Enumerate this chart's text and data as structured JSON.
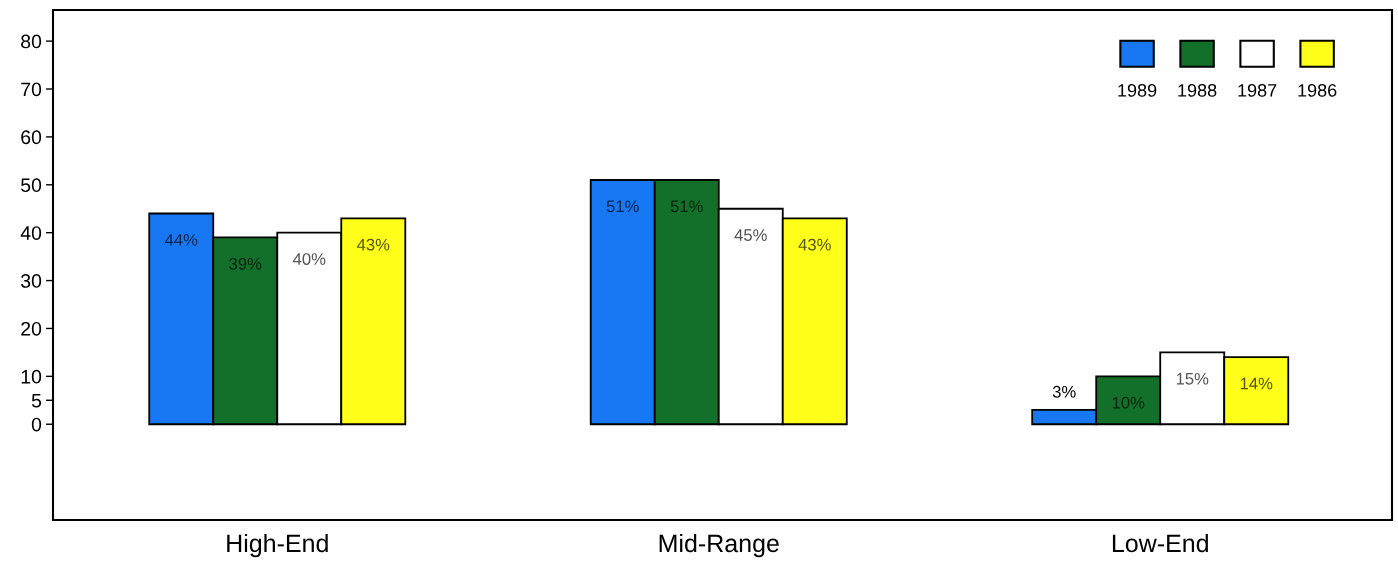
{
  "chart_data": {
    "type": "bar",
    "categories": [
      "High-End",
      "Mid-Range",
      "Low-End"
    ],
    "series": [
      {
        "name": "1989",
        "color": "#1877f2",
        "values": [
          44,
          51,
          3
        ],
        "value_labels": [
          "44%",
          "51%",
          "3%"
        ]
      },
      {
        "name": "1988",
        "color": "#13702a",
        "values": [
          39,
          51,
          10
        ],
        "value_labels": [
          "39%",
          "51%",
          "10%"
        ]
      },
      {
        "name": "1987",
        "color": "#ffffff",
        "values": [
          40,
          45,
          15
        ],
        "value_labels": [
          "40%",
          "45%",
          "15%"
        ]
      },
      {
        "name": "1986",
        "color": "#ffff1a",
        "values": [
          43,
          43,
          14
        ],
        "value_labels": [
          "43%",
          "43%",
          "14%"
        ]
      }
    ],
    "ylim": [
      -20,
      86.5
    ],
    "yticks": [
      0,
      5,
      10,
      20,
      30,
      40,
      50,
      60,
      70,
      80
    ],
    "legend": "top right",
    "grid": false
  }
}
